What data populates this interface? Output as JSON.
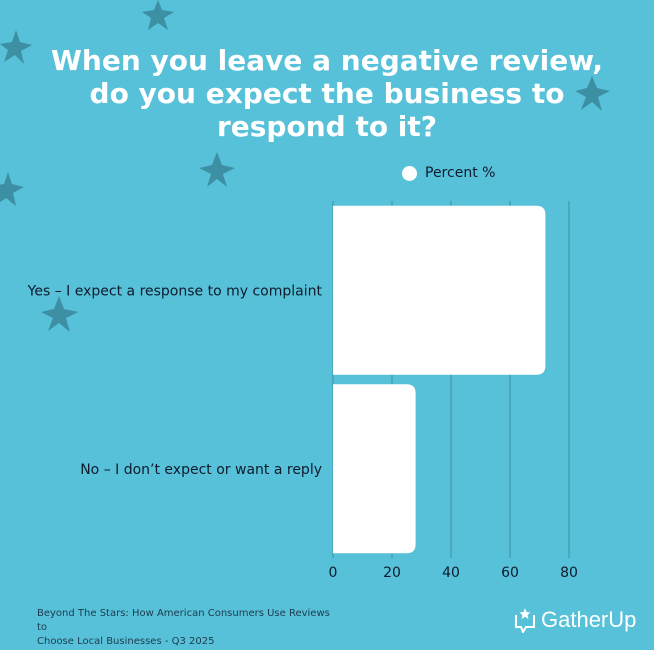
{
  "title": "When you leave a negative review, do you expect the business to respond to it?",
  "chart_data": {
    "type": "bar",
    "orientation": "horizontal",
    "categories": [
      "Yes – I expect a response to my complaint",
      "No – I don’t expect or want a reply"
    ],
    "series": [
      {
        "name": "Percent %",
        "values": [
          72,
          28
        ]
      }
    ],
    "xlim": [
      0,
      80
    ],
    "xticks": [
      0,
      20,
      40,
      60,
      80
    ],
    "grid": true,
    "legend": "top-center",
    "colors": {
      "bar": "#FFFFFF",
      "background": "#56C1D8",
      "grid": "#3E8FA2"
    }
  },
  "footer": {
    "source_line1": "Beyond The Stars: How American Consumers Use Reviews to",
    "source_line2": "Choose Local Businesses - Q3 2025",
    "logo_text": "GatherUp",
    "logo_icon": "speech-bubble-star-icon"
  }
}
